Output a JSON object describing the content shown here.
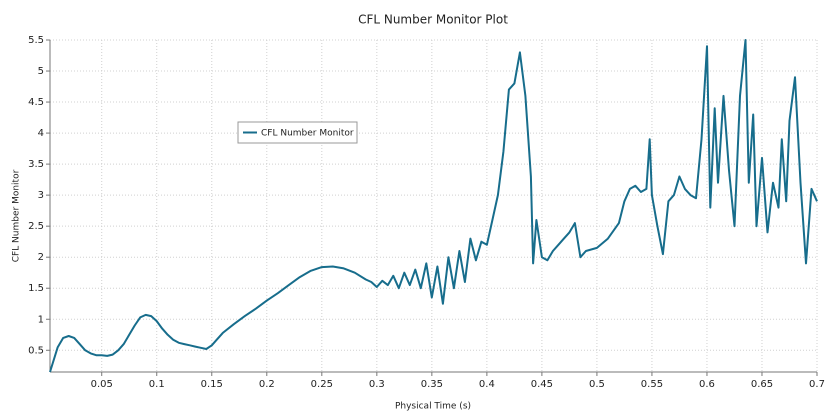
{
  "chart_data": {
    "type": "line",
    "title": "CFL Number Monitor Plot",
    "x_label": "Physical Time (s)",
    "y_label": "CFL Number Monitor",
    "x": [
      0.003,
      0.01,
      0.015,
      0.02,
      0.025,
      0.03,
      0.035,
      0.04,
      0.045,
      0.05,
      0.055,
      0.06,
      0.065,
      0.07,
      0.075,
      0.08,
      0.085,
      0.09,
      0.095,
      0.1,
      0.105,
      0.11,
      0.115,
      0.12,
      0.125,
      0.13,
      0.135,
      0.14,
      0.145,
      0.15,
      0.155,
      0.16,
      0.17,
      0.18,
      0.19,
      0.2,
      0.21,
      0.22,
      0.23,
      0.24,
      0.25,
      0.26,
      0.27,
      0.28,
      0.29,
      0.295,
      0.3,
      0.305,
      0.31,
      0.315,
      0.32,
      0.325,
      0.33,
      0.335,
      0.34,
      0.345,
      0.35,
      0.355,
      0.36,
      0.365,
      0.37,
      0.375,
      0.38,
      0.385,
      0.39,
      0.395,
      0.4,
      0.405,
      0.41,
      0.415,
      0.42,
      0.425,
      0.43,
      0.435,
      0.44,
      0.442,
      0.445,
      0.45,
      0.455,
      0.46,
      0.465,
      0.47,
      0.475,
      0.48,
      0.485,
      0.49,
      0.5,
      0.51,
      0.52,
      0.525,
      0.53,
      0.535,
      0.54,
      0.545,
      0.548,
      0.55,
      0.555,
      0.56,
      0.565,
      0.57,
      0.575,
      0.58,
      0.585,
      0.59,
      0.595,
      0.6,
      0.603,
      0.607,
      0.61,
      0.615,
      0.62,
      0.625,
      0.63,
      0.635,
      0.638,
      0.642,
      0.645,
      0.65,
      0.655,
      0.66,
      0.665,
      0.668,
      0.672,
      0.675,
      0.68,
      0.685,
      0.69,
      0.695,
      0.7
    ],
    "series": [
      {
        "name": "CFL Number Monitor",
        "color": "#176d8c",
        "values": [
          0.15,
          0.55,
          0.7,
          0.73,
          0.7,
          0.6,
          0.5,
          0.45,
          0.42,
          0.42,
          0.41,
          0.43,
          0.5,
          0.6,
          0.75,
          0.9,
          1.03,
          1.07,
          1.05,
          0.97,
          0.85,
          0.75,
          0.67,
          0.62,
          0.6,
          0.58,
          0.56,
          0.54,
          0.52,
          0.58,
          0.68,
          0.78,
          0.92,
          1.05,
          1.17,
          1.3,
          1.42,
          1.55,
          1.68,
          1.78,
          1.84,
          1.85,
          1.82,
          1.75,
          1.64,
          1.6,
          1.52,
          1.62,
          1.55,
          1.7,
          1.5,
          1.75,
          1.55,
          1.8,
          1.5,
          1.9,
          1.35,
          1.85,
          1.25,
          2.0,
          1.5,
          2.1,
          1.6,
          2.3,
          1.95,
          2.25,
          2.2,
          2.6,
          3.0,
          3.7,
          4.7,
          4.8,
          5.3,
          4.6,
          3.3,
          1.9,
          2.6,
          2.0,
          1.95,
          2.1,
          2.2,
          2.3,
          2.4,
          2.55,
          2.0,
          2.1,
          2.15,
          2.3,
          2.55,
          2.9,
          3.1,
          3.15,
          3.05,
          3.1,
          3.9,
          3.0,
          2.5,
          2.05,
          2.9,
          3.0,
          3.3,
          3.1,
          3.0,
          2.95,
          3.9,
          5.4,
          2.8,
          4.4,
          3.2,
          4.6,
          3.4,
          2.5,
          4.6,
          5.5,
          3.2,
          4.3,
          2.5,
          3.6,
          2.4,
          3.2,
          2.8,
          3.9,
          2.9,
          4.2,
          4.9,
          3.2,
          1.9,
          3.1,
          2.9
        ]
      }
    ],
    "xlim": [
      0.003,
      0.7
    ],
    "ylim": [
      0.15,
      5.5
    ],
    "xticks": [
      0.05,
      0.1,
      0.15,
      0.2,
      0.25,
      0.3,
      0.35,
      0.4,
      0.45,
      0.5,
      0.55,
      0.6,
      0.65,
      0.7
    ],
    "yticks": [
      0.5,
      1,
      1.5,
      2,
      2.5,
      3,
      3.5,
      4,
      4.5,
      5,
      5.5
    ],
    "grid": true
  }
}
